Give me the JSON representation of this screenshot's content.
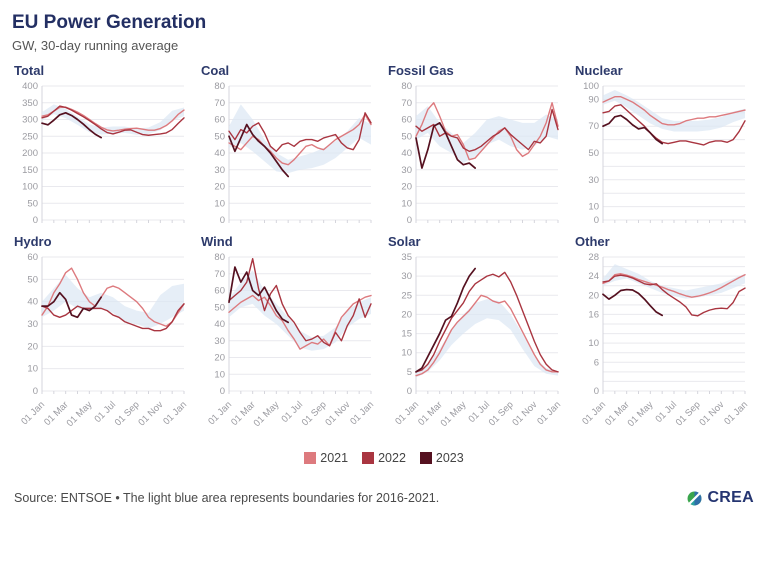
{
  "header": {
    "title": "EU Power Generation",
    "subtitle": "GW, 30-day running average"
  },
  "legend": {
    "items": [
      {
        "label": "2021",
        "color": "#dd7a7e"
      },
      {
        "label": "2022",
        "color": "#a93540"
      },
      {
        "label": "2023",
        "color": "#551120"
      }
    ]
  },
  "footer": {
    "source": "Source: ENTSOE • The light blue area represents boundaries for 2016-2021.",
    "logo_text": "CREA"
  },
  "colors": {
    "band": "#dbe7f4",
    "grid": "#e9e9ee",
    "axis": "#d5d5dc",
    "tick_text": "#9b9ba1",
    "chart_title": "#2d3a6b"
  },
  "axis": {
    "x_tick_labels": [
      "01 Jan",
      "01 Mar",
      "01 May",
      "01 Jul",
      "01 Sep",
      "01 Nov",
      "01 Jan"
    ],
    "months": 12
  },
  "chart_data": [
    {
      "type": "line",
      "title": "Total",
      "ylim": [
        0,
        400
      ],
      "grid_step": 50,
      "ytick_labels": [
        0,
        50,
        100,
        150,
        200,
        250,
        300,
        350,
        400
      ],
      "show_x_labels": false,
      "band": {
        "x": [
          0,
          1,
          2,
          3,
          4,
          5,
          6,
          7,
          8,
          9,
          10,
          11,
          12
        ],
        "upper": [
          322,
          345,
          332,
          308,
          286,
          276,
          279,
          279,
          273,
          276,
          292,
          326,
          336
        ],
        "lower": [
          298,
          316,
          304,
          284,
          262,
          255,
          258,
          260,
          254,
          257,
          268,
          296,
          310
        ]
      },
      "series": [
        {
          "name": "2021",
          "x_start": 0,
          "x_step": 0.5,
          "values": [
            310,
            314,
            325,
            336,
            337,
            330,
            322,
            312,
            300,
            288,
            277,
            269,
            266,
            268,
            271,
            273,
            274,
            271,
            268,
            268,
            273,
            282,
            296,
            315,
            328
          ]
        },
        {
          "name": "2022",
          "x_start": 0,
          "x_step": 0.5,
          "values": [
            305,
            310,
            325,
            340,
            336,
            328,
            318,
            308,
            297,
            285,
            272,
            261,
            257,
            262,
            268,
            269,
            262,
            255,
            253,
            255,
            257,
            260,
            270,
            288,
            305
          ]
        },
        {
          "name": "2023",
          "x_start": 0,
          "x_step": 0.5,
          "values": [
            289,
            284,
            298,
            314,
            320,
            312,
            300,
            286,
            270,
            256,
            246
          ]
        }
      ]
    },
    {
      "type": "line",
      "title": "Coal",
      "ylim": [
        0,
        80
      ],
      "grid_step": 10,
      "ytick_labels": [
        0,
        10,
        20,
        30,
        40,
        50,
        60,
        70,
        80
      ],
      "show_x_labels": false,
      "band": {
        "x": [
          0,
          1,
          2,
          3,
          4,
          5,
          6,
          7,
          8,
          9,
          10,
          11,
          12
        ],
        "upper": [
          56,
          69,
          60,
          48,
          40,
          36,
          38,
          40,
          43,
          47,
          53,
          61,
          57
        ],
        "lower": [
          43,
          46,
          41,
          35,
          29,
          28,
          30,
          31,
          33,
          37,
          43,
          49,
          45
        ]
      },
      "series": [
        {
          "name": "2021",
          "x_start": 0,
          "x_step": 0.5,
          "values": [
            46,
            44,
            42,
            46,
            50,
            48,
            44,
            41,
            37,
            34,
            33,
            36,
            40,
            44,
            45,
            43,
            42,
            45,
            48,
            50,
            52,
            54,
            57,
            63,
            57
          ]
        },
        {
          "name": "2022",
          "x_start": 0,
          "x_step": 0.5,
          "values": [
            53,
            48,
            54,
            52,
            56,
            58,
            52,
            44,
            41,
            45,
            46,
            44,
            47,
            48,
            48,
            47,
            49,
            50,
            51,
            46,
            43,
            42,
            48,
            64,
            58
          ]
        },
        {
          "name": "2023",
          "x_start": 0,
          "x_step": 0.5,
          "values": [
            50,
            41,
            49,
            57,
            51,
            47,
            44,
            40,
            35,
            30,
            26
          ]
        }
      ]
    },
    {
      "type": "line",
      "title": "Fossil Gas",
      "ylim": [
        0,
        80
      ],
      "grid_step": 10,
      "ytick_labels": [
        0,
        10,
        20,
        30,
        40,
        50,
        60,
        70,
        80
      ],
      "show_x_labels": false,
      "band": {
        "x": [
          0,
          1,
          2,
          3,
          4,
          5,
          6,
          7,
          8,
          9,
          10,
          11,
          12
        ],
        "upper": [
          62,
          68,
          58,
          52,
          46,
          52,
          60,
          62,
          60,
          58,
          58,
          63,
          60
        ],
        "lower": [
          48,
          52,
          44,
          40,
          34,
          38,
          45,
          48,
          44,
          42,
          44,
          50,
          48
        ]
      },
      "series": [
        {
          "name": "2021",
          "x_start": 0,
          "x_step": 0.5,
          "values": [
            50,
            57,
            66,
            70,
            62,
            53,
            50,
            51,
            45,
            36,
            37,
            41,
            45,
            49,
            53,
            55,
            50,
            42,
            38,
            40,
            45,
            50,
            58,
            70,
            56
          ]
        },
        {
          "name": "2022",
          "x_start": 0,
          "x_step": 0.5,
          "values": [
            56,
            53,
            55,
            57,
            50,
            52,
            50,
            49,
            43,
            41,
            42,
            44,
            47,
            50,
            52,
            55,
            51,
            48,
            45,
            42,
            47,
            46,
            50,
            66,
            54
          ]
        },
        {
          "name": "2023",
          "x_start": 0,
          "x_step": 0.5,
          "values": [
            49,
            31,
            42,
            56,
            58,
            52,
            44,
            36,
            33,
            34,
            31
          ]
        }
      ]
    },
    {
      "type": "line",
      "title": "Nuclear",
      "ylim": [
        0,
        100
      ],
      "grid_step": 10,
      "ytick_labels": [
        0,
        10,
        30,
        50,
        70,
        90,
        100
      ],
      "show_x_labels": false,
      "band": {
        "x": [
          0,
          1,
          2,
          3,
          4,
          5,
          6,
          7,
          8,
          9,
          10,
          11,
          12
        ],
        "upper": [
          93,
          97,
          93,
          88,
          82,
          76,
          74,
          74,
          74,
          75,
          77,
          81,
          83
        ],
        "lower": [
          86,
          89,
          84,
          78,
          72,
          68,
          66,
          66,
          66,
          67,
          69,
          73,
          76
        ]
      },
      "series": [
        {
          "name": "2021",
          "x_start": 0,
          "x_step": 0.5,
          "values": [
            88,
            90,
            92,
            92,
            90,
            88,
            85,
            82,
            78,
            75,
            72,
            71,
            71,
            72,
            74,
            75,
            76,
            76,
            77,
            77,
            78,
            79,
            80,
            81,
            82
          ]
        },
        {
          "name": "2022",
          "x_start": 0,
          "x_step": 0.5,
          "values": [
            80,
            81,
            85,
            86,
            82,
            78,
            74,
            70,
            65,
            61,
            58,
            57,
            58,
            59,
            59,
            58,
            57,
            56,
            58,
            59,
            59,
            58,
            60,
            66,
            74
          ]
        },
        {
          "name": "2023",
          "x_start": 0,
          "x_step": 0.5,
          "values": [
            70,
            72,
            77,
            78,
            75,
            71,
            68,
            69,
            65,
            60,
            57
          ]
        }
      ]
    },
    {
      "type": "line",
      "title": "Hydro",
      "ylim": [
        0,
        60
      ],
      "grid_step": 10,
      "ytick_labels": [
        0,
        10,
        20,
        30,
        40,
        50,
        60
      ],
      "show_x_labels": true,
      "band": {
        "x": [
          0,
          1,
          2,
          3,
          4,
          5,
          6,
          7,
          8,
          9,
          10,
          11,
          12
        ],
        "upper": [
          40,
          46,
          52,
          46,
          42,
          44,
          42,
          38,
          36,
          35,
          43,
          47,
          48
        ],
        "lower": [
          33,
          36,
          40,
          37,
          36,
          37,
          35,
          31,
          30,
          28,
          30,
          33,
          36
        ]
      },
      "series": [
        {
          "name": "2021",
          "x_start": 0,
          "x_step": 0.5,
          "values": [
            34,
            38,
            44,
            48,
            53,
            55,
            50,
            44,
            40,
            38,
            42,
            46,
            47,
            46,
            44,
            42,
            40,
            37,
            33,
            31,
            30,
            29,
            31,
            35,
            39
          ]
        },
        {
          "name": "2022",
          "x_start": 0,
          "x_step": 0.5,
          "values": [
            38,
            37,
            34,
            33,
            34,
            36,
            38,
            37,
            37,
            37,
            37,
            36,
            34,
            33,
            31,
            30,
            29,
            28,
            28,
            27,
            27,
            28,
            31,
            36,
            39
          ]
        },
        {
          "name": "2023",
          "x_start": 0,
          "x_step": 0.5,
          "values": [
            38,
            38,
            40,
            44,
            41,
            34,
            33,
            37,
            36,
            38,
            42
          ]
        }
      ]
    },
    {
      "type": "line",
      "title": "Wind",
      "ylim": [
        0,
        80
      ],
      "grid_step": 10,
      "ytick_labels": [
        0,
        10,
        20,
        30,
        40,
        50,
        60,
        70,
        80
      ],
      "show_x_labels": true,
      "band": {
        "x": [
          0,
          1,
          2,
          3,
          4,
          5,
          6,
          7,
          8,
          9,
          10,
          11,
          12
        ],
        "upper": [
          55,
          65,
          72,
          60,
          52,
          44,
          36,
          32,
          33,
          38,
          48,
          53,
          56
        ],
        "lower": [
          44,
          50,
          52,
          45,
          40,
          33,
          26,
          24,
          25,
          29,
          38,
          43,
          46
        ]
      },
      "series": [
        {
          "name": "2021",
          "x_start": 0,
          "x_step": 0.5,
          "values": [
            47,
            50,
            53,
            55,
            57,
            54,
            56,
            51,
            45,
            42,
            36,
            31,
            25,
            27,
            29,
            28,
            31,
            27,
            36,
            44,
            48,
            52,
            54,
            56,
            57
          ]
        },
        {
          "name": "2022",
          "x_start": 0,
          "x_step": 0.5,
          "values": [
            54,
            57,
            60,
            65,
            79,
            61,
            48,
            58,
            63,
            52,
            45,
            41,
            35,
            30,
            31,
            33,
            29,
            27,
            35,
            30,
            39,
            45,
            55,
            44,
            52
          ]
        },
        {
          "name": "2023",
          "x_start": 0,
          "x_step": 0.5,
          "values": [
            53,
            74,
            65,
            71,
            60,
            57,
            62,
            55,
            48,
            43,
            41
          ]
        }
      ]
    },
    {
      "type": "line",
      "title": "Solar",
      "ylim": [
        0,
        35
      ],
      "grid_step": 5,
      "ytick_labels": [
        0,
        5,
        10,
        15,
        20,
        25,
        30,
        35
      ],
      "show_x_labels": true,
      "band": {
        "x": [
          0,
          1,
          2,
          3,
          4,
          5,
          6,
          7,
          8,
          9,
          10,
          11,
          12
        ],
        "upper": [
          5,
          7,
          11,
          16,
          20,
          23,
          24,
          23.5,
          20,
          15,
          9,
          6,
          5
        ],
        "lower": [
          3.5,
          5,
          8,
          12,
          15,
          17.5,
          19,
          18.5,
          16,
          11,
          6.5,
          4.5,
          4
        ]
      },
      "series": [
        {
          "name": "2021",
          "x_start": 0,
          "x_step": 0.5,
          "values": [
            4,
            4.5,
            5.5,
            7.5,
            10,
            13,
            16,
            18,
            19.5,
            21,
            23,
            25,
            24.5,
            23.5,
            23,
            23.5,
            21.5,
            18.5,
            15.5,
            12.5,
            9.5,
            7,
            5.5,
            5,
            5
          ]
        },
        {
          "name": "2022",
          "x_start": 0,
          "x_step": 0.5,
          "values": [
            5,
            5.5,
            7,
            9.5,
            13,
            16,
            19,
            21,
            23,
            26,
            28,
            29,
            30,
            30.5,
            29.8,
            31,
            28.5,
            25,
            21,
            17,
            13,
            9.5,
            7,
            5.5,
            5
          ]
        },
        {
          "name": "2023",
          "x_start": 0,
          "x_step": 0.5,
          "values": [
            5,
            6,
            9,
            12,
            15,
            18.5,
            19.5,
            23,
            27,
            30,
            32
          ]
        }
      ]
    },
    {
      "type": "line",
      "title": "Other",
      "ylim": [
        0,
        28
      ],
      "grid_step": 2,
      "ytick_labels": [
        0,
        6,
        10,
        16,
        20,
        24,
        28
      ],
      "show_x_labels": true,
      "band": {
        "x": [
          0,
          1,
          2,
          3,
          4,
          5,
          6,
          7,
          8,
          9,
          10,
          11,
          12
        ],
        "upper": [
          23.5,
          26.5,
          25.5,
          24.5,
          23,
          22,
          21.5,
          21,
          21.5,
          22,
          22.5,
          23.5,
          24.5
        ],
        "lower": [
          22,
          23,
          23.5,
          22.5,
          21.5,
          20.5,
          19.8,
          19.3,
          19.5,
          20,
          20.5,
          21.5,
          22.5
        ]
      },
      "series": [
        {
          "name": "2021",
          "x_start": 0,
          "x_step": 0.5,
          "values": [
            22.5,
            23,
            24.3,
            24.5,
            24.2,
            23.8,
            23.3,
            22.9,
            22.5,
            22.1,
            21.7,
            21.2,
            20.8,
            20.3,
            19.9,
            19.6,
            19.8,
            20.1,
            20.5,
            21,
            21.6,
            22.3,
            23,
            23.7,
            24.3
          ]
        },
        {
          "name": "2022",
          "x_start": 0,
          "x_step": 0.5,
          "values": [
            22.8,
            23,
            24,
            24.2,
            24,
            23.6,
            23,
            22.4,
            22.2,
            22.4,
            21.2,
            20.2,
            19.4,
            18.6,
            17.6,
            15.9,
            15.7,
            16.4,
            16.9,
            17.2,
            17.3,
            17.2,
            18.5,
            20.8,
            21.5
          ]
        },
        {
          "name": "2023",
          "x_start": 0,
          "x_step": 0.5,
          "values": [
            20.2,
            19.2,
            20,
            21,
            21.2,
            21.1,
            20.4,
            19.2,
            17.8,
            16.5,
            15.8
          ]
        }
      ]
    }
  ]
}
